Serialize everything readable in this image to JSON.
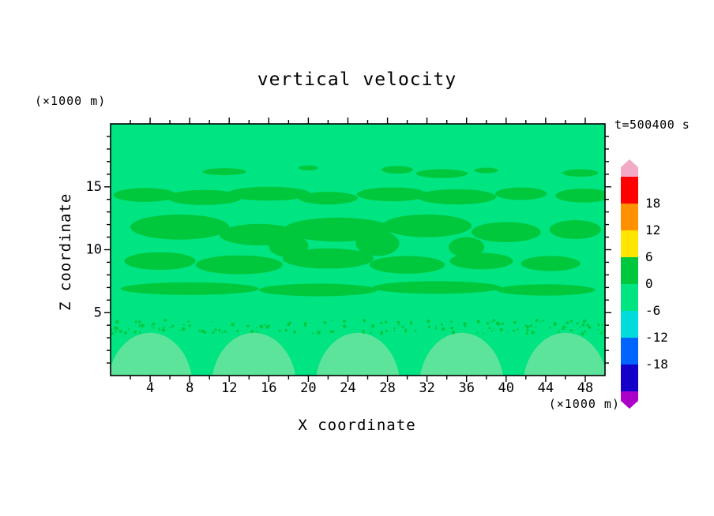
{
  "title": "vertical velocity",
  "time_label": "t=500400 s",
  "y_units_label": "(×1000 m)",
  "x_units_label": "(×1000 m)",
  "axes": {
    "x": {
      "label": "X coordinate",
      "min": 0,
      "max": 50,
      "major_ticks": [
        4,
        8,
        12,
        16,
        20,
        24,
        28,
        32,
        36,
        40,
        44,
        48
      ],
      "minor_step": 2
    },
    "z": {
      "label": "Z coordinate",
      "min": 0,
      "max": 20,
      "major_ticks": [
        5,
        10,
        15
      ],
      "minor_step": 1
    }
  },
  "colorbar": {
    "levels": [
      18,
      12,
      6,
      0,
      -6,
      -12,
      -18
    ],
    "segment_colors": [
      "#ff0000",
      "#ff9100",
      "#ffe400",
      "#00c83c",
      "#00e482",
      "#00dcdc",
      "#0064ff",
      "#1400c8"
    ],
    "arrow_top_color": "#f2aac6",
    "arrow_bottom_color": "#aa00c8"
  },
  "chart_data": {
    "type": "heatmap",
    "title": "vertical velocity",
    "xlabel": "X coordinate (×1000 m)",
    "ylabel": "Z coordinate (×1000 m)",
    "time_annotation": "t=500400 s",
    "xlim": [
      0,
      50
    ],
    "ylim": [
      0,
      20
    ],
    "contour_interval": 6,
    "contour_levels": [
      -18,
      -12,
      -6,
      0,
      6,
      12,
      18
    ],
    "colors": {
      "background": "#00e482",
      "blobs": "#00c83c",
      "domes": "#5ce49b"
    },
    "bands": {
      "background_value_range": [
        -6,
        0
      ],
      "blob_value_range": [
        0,
        6
      ]
    },
    "positive_blobs": [
      [
        11.5,
        16.2,
        2.2,
        0.28
      ],
      [
        20,
        16.5,
        1.0,
        0.2
      ],
      [
        29,
        16.35,
        1.6,
        0.3
      ],
      [
        33.5,
        16.05,
        2.6,
        0.35
      ],
      [
        38,
        16.3,
        1.2,
        0.22
      ],
      [
        47.5,
        16.1,
        1.8,
        0.3
      ],
      [
        3.5,
        14.35,
        3.2,
        0.55
      ],
      [
        9.5,
        14.15,
        3.8,
        0.6
      ],
      [
        16,
        14.45,
        4.2,
        0.55
      ],
      [
        22,
        14.1,
        3.0,
        0.5
      ],
      [
        28.5,
        14.4,
        3.6,
        0.55
      ],
      [
        35,
        14.2,
        4.0,
        0.6
      ],
      [
        41.5,
        14.45,
        2.6,
        0.5
      ],
      [
        47.8,
        14.3,
        2.8,
        0.55
      ],
      [
        7,
        11.8,
        5.0,
        1.0
      ],
      [
        15,
        11.2,
        4.0,
        0.85
      ],
      [
        23,
        11.6,
        5.5,
        0.95
      ],
      [
        32,
        11.9,
        4.5,
        0.9
      ],
      [
        40,
        11.4,
        3.5,
        0.8
      ],
      [
        47,
        11.6,
        2.6,
        0.75
      ],
      [
        18,
        10.3,
        2.0,
        0.9
      ],
      [
        27,
        10.5,
        2.2,
        1.0
      ],
      [
        36,
        10.2,
        1.8,
        0.8
      ],
      [
        5,
        9.1,
        3.6,
        0.7
      ],
      [
        13,
        8.8,
        4.4,
        0.75
      ],
      [
        22,
        9.3,
        4.6,
        0.8
      ],
      [
        30,
        8.8,
        3.8,
        0.7
      ],
      [
        37.5,
        9.1,
        3.2,
        0.65
      ],
      [
        44.5,
        8.9,
        3.0,
        0.6
      ],
      [
        8,
        6.9,
        7.0,
        0.5
      ],
      [
        21,
        6.8,
        6.0,
        0.5
      ],
      [
        33,
        7.0,
        6.5,
        0.5
      ],
      [
        44,
        6.8,
        5.0,
        0.45
      ]
    ],
    "speckle_band": {
      "z_min": 3.3,
      "z_max": 4.4,
      "count": 150,
      "value_range": [
        0,
        6
      ]
    },
    "terrain_domes": {
      "centers_x": [
        4,
        14.5,
        25,
        35.5,
        46
      ],
      "center_z": -0.9,
      "rx": 4.3,
      "rz": 4.3
    }
  }
}
